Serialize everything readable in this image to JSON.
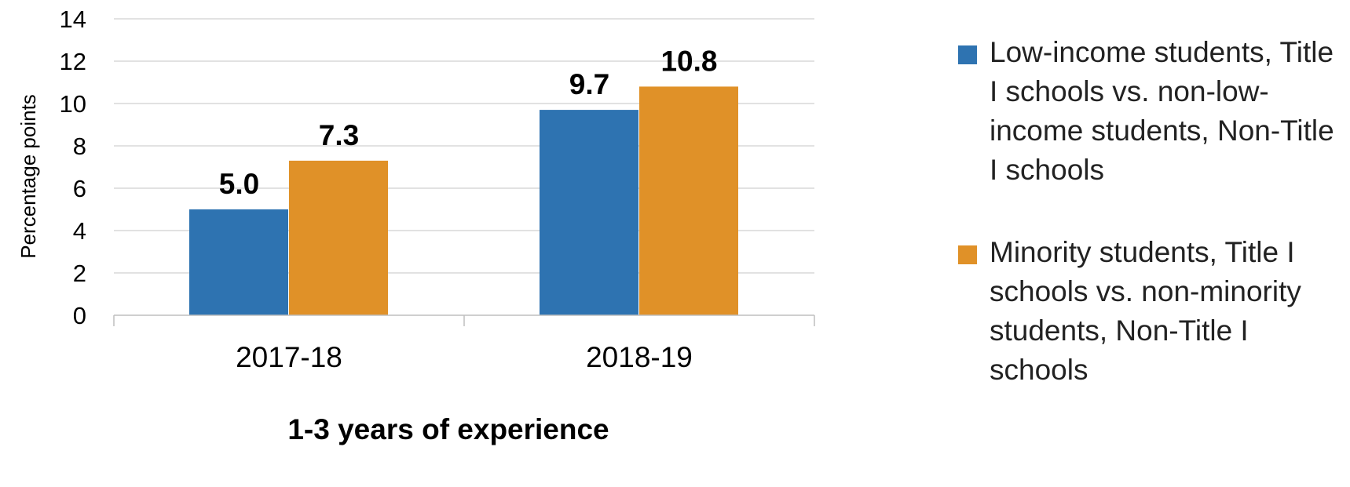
{
  "chart_data": {
    "type": "bar",
    "categories": [
      "2017-18",
      "2018-19"
    ],
    "series": [
      {
        "name": "Low-income students, Title I schools vs. non-low-income students, Non-Title I schools",
        "values": [
          5.0,
          9.7
        ],
        "labels": [
          "5.0",
          "9.7"
        ],
        "color": "#2E73B1"
      },
      {
        "name": "Minority students, Title I schools vs. non-minority students, Non-Title I schools",
        "values": [
          7.3,
          10.8
        ],
        "labels": [
          "7.3",
          "10.8"
        ],
        "color": "#E09128"
      }
    ],
    "xlabel": "1-3 years of experience",
    "ylabel": "Percentage points",
    "ylim": [
      0,
      14
    ],
    "yticks": [
      "0",
      "2",
      "4",
      "6",
      "8",
      "10",
      "12",
      "14"
    ],
    "grid": true,
    "legend_position": "right"
  }
}
